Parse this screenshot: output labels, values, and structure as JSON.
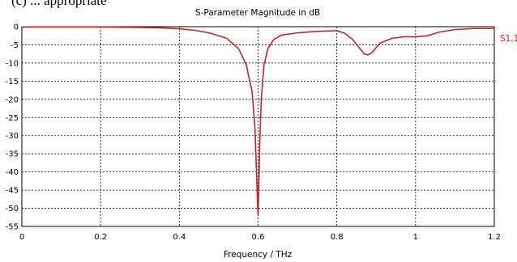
{
  "caption_fragment": "(c) ... appropriate",
  "colors": {
    "series": "#cc2222",
    "grid": "#000000",
    "axis": "#000000",
    "background": "#ffffff"
  },
  "chart_data": {
    "type": "line",
    "title": "S-Parameter Magnitude in dB",
    "xlabel": "Frequency / THz",
    "ylabel": "",
    "xlim": [
      0,
      1.2
    ],
    "ylim": [
      -55,
      0
    ],
    "x_ticks": [
      "0",
      "0.2",
      "0.4",
      "0.6",
      "0.8",
      "1",
      "1.2"
    ],
    "y_ticks": [
      "0",
      "-5",
      "-10",
      "-15",
      "-20",
      "-25",
      "-30",
      "-35",
      "-40",
      "-45",
      "-50",
      "-55"
    ],
    "x_tick_values": [
      0,
      0.2,
      0.4,
      0.6,
      0.8,
      1.0,
      1.2
    ],
    "y_tick_values": [
      0,
      -5,
      -10,
      -15,
      -20,
      -25,
      -30,
      -35,
      -40,
      -45,
      -50,
      -55
    ],
    "grid": true,
    "legend_placement": "right",
    "series": [
      {
        "name": "S1,1",
        "x": [
          0,
          0.1,
          0.2,
          0.3,
          0.35,
          0.4,
          0.44,
          0.48,
          0.52,
          0.55,
          0.57,
          0.585,
          0.592,
          0.596,
          0.599,
          0.6,
          0.601,
          0.604,
          0.608,
          0.615,
          0.625,
          0.64,
          0.66,
          0.7,
          0.75,
          0.8,
          0.82,
          0.84,
          0.86,
          0.87,
          0.88,
          0.89,
          0.91,
          0.94,
          0.97,
          1.0,
          1.03,
          1.06,
          1.1,
          1.15,
          1.2
        ],
        "y": [
          -0.1,
          -0.1,
          -0.1,
          -0.2,
          -0.3,
          -0.6,
          -1.0,
          -1.8,
          -3.2,
          -6.0,
          -10.5,
          -18.0,
          -28.0,
          -40.0,
          -50.0,
          -52.0,
          -48.0,
          -33.0,
          -20.0,
          -10.5,
          -6.0,
          -3.5,
          -2.3,
          -1.7,
          -1.3,
          -1.1,
          -1.8,
          -3.5,
          -6.2,
          -7.5,
          -7.8,
          -7.0,
          -4.5,
          -3.2,
          -2.8,
          -2.8,
          -2.5,
          -1.5,
          -0.8,
          -0.5,
          -0.5
        ]
      }
    ]
  }
}
